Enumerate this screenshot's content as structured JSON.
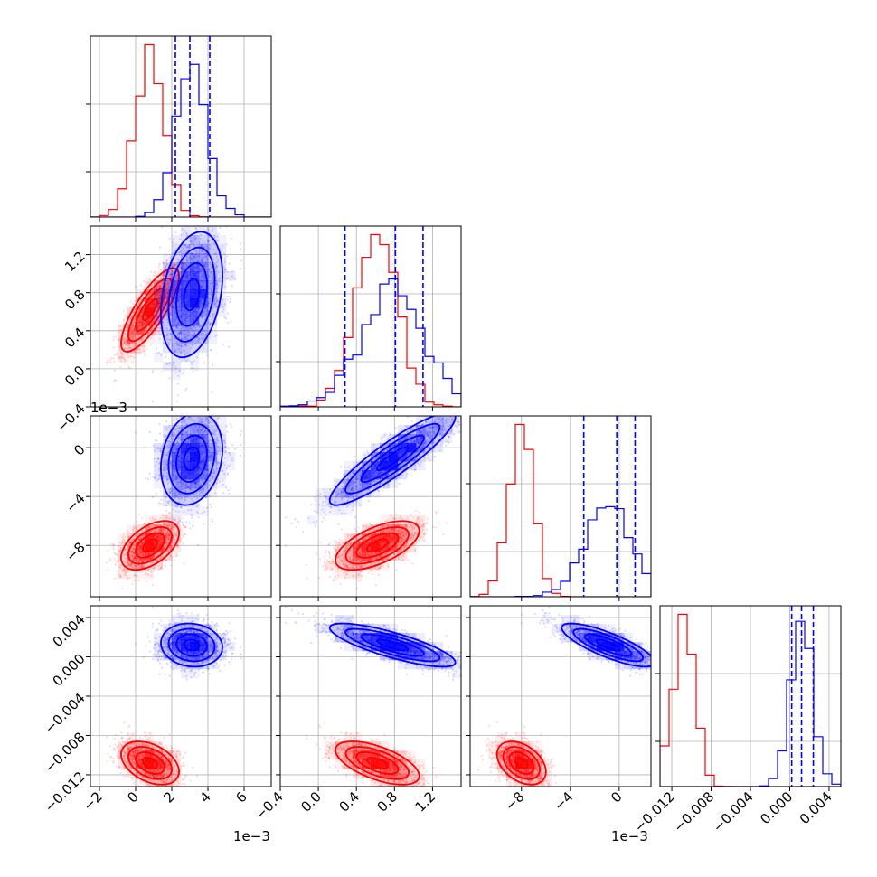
{
  "chart_data": {
    "type": "corner",
    "colors": {
      "series_a": "#ff0000",
      "series_b": "#0000ff",
      "grid": "#b0b0b0"
    },
    "grid": true,
    "parameters": [
      {
        "range": [
          -2.5,
          7.5
        ],
        "ticks": [
          -2,
          0,
          2,
          4,
          6
        ],
        "tick_labels": [
          "−2",
          "0",
          "2",
          "4",
          "6"
        ],
        "offset_label": "1e−3"
      },
      {
        "range": [
          -0.4,
          1.5
        ],
        "ticks": [
          -0.4,
          0.0,
          0.4,
          0.8,
          1.2
        ],
        "tick_labels": [
          "−0.4",
          "0.0",
          "0.4",
          "0.8",
          "1.2"
        ],
        "offset_label": "1e−3"
      },
      {
        "range": [
          -12.2,
          2.6
        ],
        "ticks": [
          -8,
          -4,
          0
        ],
        "tick_labels": [
          "−8",
          "−4",
          "0"
        ],
        "offset_label": "1e−3"
      },
      {
        "range": [
          -0.0132,
          0.0052
        ],
        "ticks": [
          -0.012,
          -0.008,
          -0.004,
          0.0,
          0.004
        ],
        "tick_labels": [
          "−0.012",
          "−0.008",
          "−0.004",
          "0.000",
          "0.004"
        ],
        "offset_label": ""
      }
    ],
    "series": [
      {
        "name": "",
        "color": "#ff0000",
        "mean": [
          0.8,
          0.62,
          -8.0,
          -0.0108
        ],
        "std": [
          0.8,
          0.22,
          1.0,
          0.0011
        ],
        "corr": [
          [
            1,
            0.8,
            0.5,
            -0.4
          ],
          [
            0.8,
            1,
            0.6,
            -0.6
          ],
          [
            0.5,
            0.6,
            1,
            -0.4
          ],
          [
            -0.4,
            -0.6,
            -0.4,
            1
          ]
        ]
      },
      {
        "name": "",
        "color": "#0000ff",
        "mean": [
          3.1,
          0.78,
          -0.9,
          0.0012
        ],
        "std": [
          0.85,
          0.33,
          1.9,
          0.0011
        ],
        "corr": [
          [
            1,
            0.3,
            0.2,
            -0.1
          ],
          [
            0.3,
            1,
            0.9,
            -0.8
          ],
          [
            0.2,
            0.9,
            1,
            -0.8
          ],
          [
            -0.1,
            -0.8,
            -0.8,
            1
          ]
        ],
        "quantiles": [
          [
            2.2,
            3.0,
            4.1
          ],
          [
            0.28,
            0.81,
            1.1
          ],
          [
            -2.9,
            -0.2,
            1.3
          ],
          [
            0.0002,
            0.0012,
            0.0024
          ]
        ]
      }
    ]
  }
}
